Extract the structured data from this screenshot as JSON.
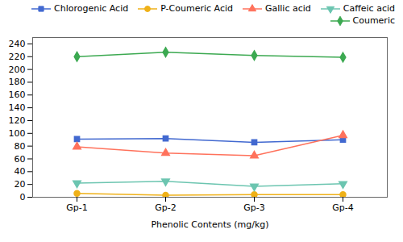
{
  "chart_data": {
    "type": "line",
    "categories": [
      "Gp-1",
      "Gp-2",
      "Gp-3",
      "Gp-4"
    ],
    "series": [
      {
        "name": "Chlorogenic Acid",
        "marker": "square",
        "values": [
          91,
          92,
          86,
          90
        ]
      },
      {
        "name": "P-Coumeric Acid",
        "marker": "circle",
        "values": [
          6,
          3,
          4,
          4
        ]
      },
      {
        "name": "Gallic acid",
        "marker": "triangle-up",
        "values": [
          79,
          69,
          65,
          97
        ]
      },
      {
        "name": "Caffeic acid",
        "marker": "triangle-down",
        "values": [
          22,
          25,
          17,
          21
        ]
      },
      {
        "name": "Coumeric",
        "marker": "diamond",
        "values": [
          220,
          227,
          222,
          219
        ]
      }
    ],
    "xlabel": "Phenolic Contents (mg/kg)",
    "ylim": [
      0,
      250
    ],
    "yticks": [
      0,
      20,
      40,
      60,
      80,
      100,
      120,
      140,
      160,
      180,
      200,
      220,
      240
    ],
    "grid": false,
    "legend": "upper right"
  }
}
